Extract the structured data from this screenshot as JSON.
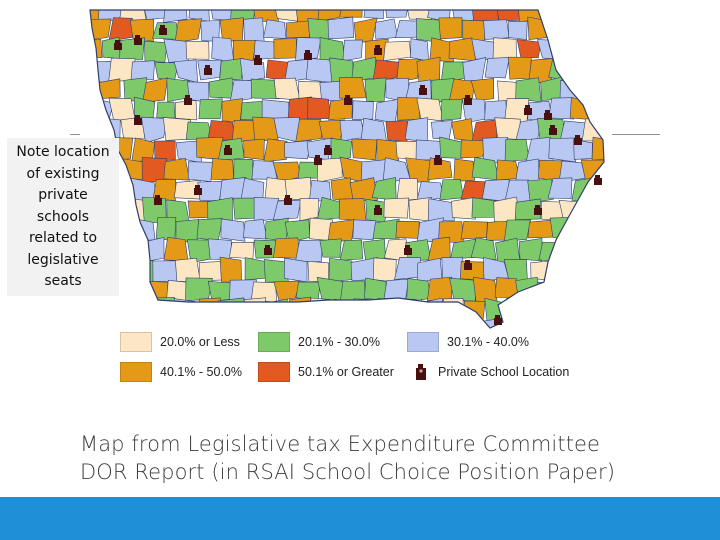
{
  "note": {
    "lines": [
      "Note location",
      "of existing",
      "private",
      "schools",
      "related to",
      "legislative",
      "seats"
    ]
  },
  "legend": {
    "items": [
      {
        "label": "20.0% or Less",
        "color": "#fce6c4"
      },
      {
        "label": "20.1% - 30.0%",
        "color": "#7ec96a"
      },
      {
        "label": "30.1% - 40.0%",
        "color": "#b8c8f2"
      },
      {
        "label": "40.1% - 50.0%",
        "color": "#e59a17"
      },
      {
        "label": "50.1% or Greater",
        "color": "#e25a22"
      }
    ],
    "private_school_label": "Private School Location",
    "marker_color": "#4a1010"
  },
  "caption": {
    "line1": "Map from Legislative tax Expenditure Committee",
    "line2": "DOR Report (in RSAI School Choice Position Paper)"
  },
  "colors": {
    "bottom_bar": "#1f8fd8",
    "outline": "#2f3f6a"
  }
}
